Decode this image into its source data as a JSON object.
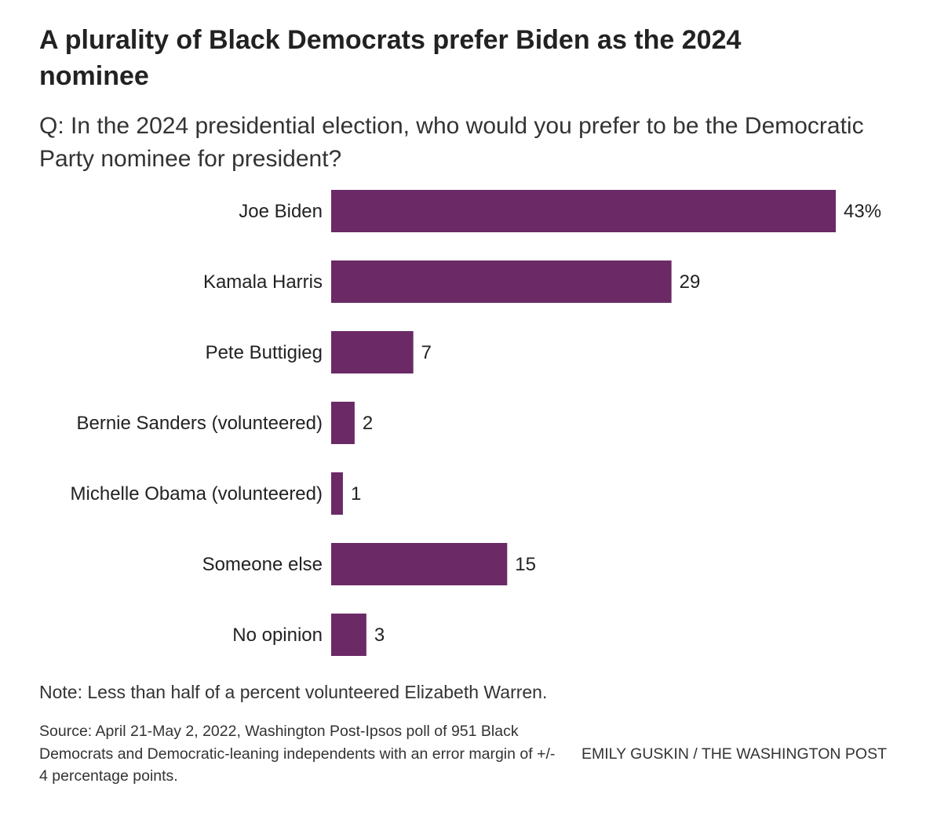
{
  "chart_data": {
    "type": "bar",
    "orientation": "horizontal",
    "title": "A plurality of Black Democrats prefer Biden as the 2024 nominee",
    "subtitle": "Q: In the 2024 presidential election, who would you prefer to be the Democratic Party nominee for president?",
    "categories": [
      "Joe Biden",
      "Kamala Harris",
      "Pete Buttigieg",
      "Bernie Sanders (volunteered)",
      "Michelle Obama (volunteered)",
      "Someone else",
      "No opinion"
    ],
    "values": [
      43,
      29,
      7,
      2,
      1,
      15,
      3
    ],
    "value_labels": [
      "43%",
      "29",
      "7",
      "2",
      "1",
      "15",
      "3"
    ],
    "unit": "%",
    "bar_color": "#6b2a65",
    "grid": false,
    "legend": false
  },
  "note": "Note: Less than half of a percent volunteered Elizabeth Warren.",
  "source": "Source: April 21-May 2, 2022, Washington Post-Ipsos poll of 951 Black Democrats and Democratic-leaning independents with an error margin of +/- 4 percentage points.",
  "credit": "EMILY GUSKIN / THE WASHINGTON POST"
}
